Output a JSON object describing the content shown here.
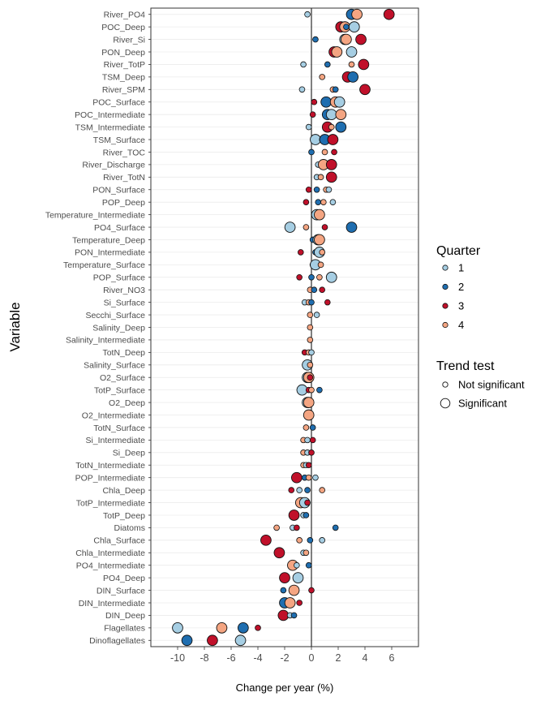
{
  "chart_data": {
    "type": "scatter",
    "xlabel": "Change per year (%)",
    "ylabel": "Variable",
    "xlim": [
      -12,
      8
    ],
    "xticks": [
      -10,
      -8,
      -6,
      -4,
      -2,
      0,
      2,
      4,
      6
    ],
    "xtick_labels": [
      "-10",
      "-8",
      "-6",
      "-4",
      "-2",
      "0",
      "2",
      "4",
      "6"
    ],
    "grid": true,
    "legend_position": "right",
    "colors": {
      "1": "#a6cee3",
      "2": "#1f6eb0",
      "3": "#c0102a",
      "4": "#f4a582"
    },
    "legend": {
      "quarter_title": "Quarter",
      "quarters": [
        {
          "label": "1",
          "color": "#a6cee3"
        },
        {
          "label": "2",
          "color": "#1f6eb0"
        },
        {
          "label": "3",
          "color": "#c0102a"
        },
        {
          "label": "4",
          "color": "#f4a582"
        }
      ],
      "trend_title": "Trend test",
      "trend_items": [
        {
          "label": "Not significant",
          "significant": false
        },
        {
          "label": "Significant",
          "significant": true
        }
      ]
    },
    "categories": [
      "River_PO4",
      "POC_Deep",
      "River_Si",
      "PON_Deep",
      "River_TotP",
      "TSM_Deep",
      "River_SPM",
      "POC_Surface",
      "POC_Intermediate",
      "TSM_Intermediate",
      "TSM_Surface",
      "River_TOC",
      "River_Discharge",
      "River_TotN",
      "PON_Surface",
      "POP_Deep",
      "Temperature_Intermediate",
      "PO4_Surface",
      "Temperature_Deep",
      "PON_Intermediate",
      "Temperature_Surface",
      "POP_Surface",
      "River_NO3",
      "Si_Surface",
      "Secchi_Surface",
      "Salinity_Deep",
      "Salinity_Intermediate",
      "TotN_Deep",
      "Salinity_Surface",
      "O2_Surface",
      "TotP_Surface",
      "O2_Deep",
      "O2_Intermediate",
      "TotN_Surface",
      "Si_Intermediate",
      "Si_Deep",
      "TotN_Intermediate",
      "POP_Intermediate",
      "Chla_Deep",
      "TotP_Intermediate",
      "TotP_Deep",
      "Diatoms",
      "Chla_Surface",
      "Chla_Intermediate",
      "PO4_Intermediate",
      "PO4_Deep",
      "DIN_Surface",
      "DIN_Intermediate",
      "DIN_Deep",
      "Flagellates",
      "Dinoflagellates"
    ],
    "points": [
      [
        "River_PO4",
        1,
        -0.3,
        0
      ],
      [
        "River_PO4",
        2,
        3.0,
        1
      ],
      [
        "River_PO4",
        4,
        3.4,
        1
      ],
      [
        "River_PO4",
        3,
        5.8,
        1
      ],
      [
        "POC_Deep",
        3,
        2.2,
        1
      ],
      [
        "POC_Deep",
        4,
        2.5,
        1
      ],
      [
        "POC_Deep",
        2,
        2.6,
        0
      ],
      [
        "POC_Deep",
        1,
        3.2,
        1
      ],
      [
        "River_Si",
        2,
        0.3,
        0
      ],
      [
        "River_Si",
        1,
        2.5,
        1
      ],
      [
        "River_Si",
        4,
        2.6,
        1
      ],
      [
        "River_Si",
        3,
        3.7,
        1
      ],
      [
        "PON_Deep",
        3,
        1.7,
        1
      ],
      [
        "PON_Deep",
        4,
        1.9,
        1
      ],
      [
        "PON_Deep",
        1,
        3.0,
        1
      ],
      [
        "River_TotP",
        1,
        -0.6,
        0
      ],
      [
        "River_TotP",
        2,
        1.2,
        0
      ],
      [
        "River_TotP",
        4,
        3.0,
        0
      ],
      [
        "River_TotP",
        3,
        3.9,
        1
      ],
      [
        "TSM_Deep",
        4,
        0.8,
        0
      ],
      [
        "TSM_Deep",
        3,
        2.7,
        1
      ],
      [
        "TSM_Deep",
        2,
        3.1,
        1
      ],
      [
        "River_SPM",
        1,
        -0.7,
        0
      ],
      [
        "River_SPM",
        4,
        1.6,
        0
      ],
      [
        "River_SPM",
        2,
        1.8,
        0
      ],
      [
        "River_SPM",
        3,
        4.0,
        1
      ],
      [
        "POC_Surface",
        3,
        0.2,
        0
      ],
      [
        "POC_Surface",
        2,
        1.1,
        1
      ],
      [
        "POC_Surface",
        4,
        1.8,
        1
      ],
      [
        "POC_Surface",
        1,
        2.1,
        1
      ],
      [
        "POC_Intermediate",
        3,
        0.1,
        0
      ],
      [
        "POC_Intermediate",
        2,
        1.2,
        1
      ],
      [
        "POC_Intermediate",
        1,
        1.5,
        1
      ],
      [
        "POC_Intermediate",
        4,
        2.2,
        1
      ],
      [
        "TSM_Intermediate",
        1,
        -0.2,
        0
      ],
      [
        "TSM_Intermediate",
        3,
        1.2,
        1
      ],
      [
        "TSM_Intermediate",
        4,
        1.5,
        0
      ],
      [
        "TSM_Intermediate",
        2,
        2.2,
        1
      ],
      [
        "TSM_Surface",
        1,
        0.3,
        1
      ],
      [
        "TSM_Surface",
        4,
        0.8,
        0
      ],
      [
        "TSM_Surface",
        2,
        1.0,
        1
      ],
      [
        "TSM_Surface",
        3,
        1.6,
        1
      ],
      [
        "River_TOC",
        2,
        0.0,
        0
      ],
      [
        "River_TOC",
        4,
        1.0,
        0
      ],
      [
        "River_TOC",
        3,
        1.7,
        0
      ],
      [
        "River_Discharge",
        1,
        0.5,
        0
      ],
      [
        "River_Discharge",
        4,
        0.9,
        1
      ],
      [
        "River_Discharge",
        3,
        1.5,
        1
      ],
      [
        "River_TotN",
        1,
        0.4,
        0
      ],
      [
        "River_TotN",
        4,
        0.7,
        0
      ],
      [
        "River_TotN",
        3,
        1.5,
        1
      ],
      [
        "PON_Surface",
        3,
        -0.2,
        0
      ],
      [
        "PON_Surface",
        2,
        0.4,
        0
      ],
      [
        "PON_Surface",
        4,
        1.1,
        0
      ],
      [
        "PON_Surface",
        1,
        1.3,
        0
      ],
      [
        "POP_Deep",
        3,
        -0.4,
        0
      ],
      [
        "POP_Deep",
        2,
        0.5,
        0
      ],
      [
        "POP_Deep",
        4,
        0.9,
        0
      ],
      [
        "POP_Deep",
        1,
        1.6,
        0
      ],
      [
        "Temperature_Intermediate",
        1,
        0.4,
        1
      ],
      [
        "Temperature_Intermediate",
        4,
        0.6,
        1
      ],
      [
        "PO4_Surface",
        1,
        -1.6,
        1
      ],
      [
        "PO4_Surface",
        4,
        -0.4,
        0
      ],
      [
        "PO4_Surface",
        3,
        1.0,
        0
      ],
      [
        "PO4_Surface",
        2,
        3.0,
        1
      ],
      [
        "Temperature_Deep",
        2,
        0.1,
        0
      ],
      [
        "Temperature_Deep",
        1,
        0.5,
        1
      ],
      [
        "Temperature_Deep",
        4,
        0.6,
        1
      ],
      [
        "PON_Intermediate",
        3,
        -0.8,
        0
      ],
      [
        "PON_Intermediate",
        2,
        0.3,
        0
      ],
      [
        "PON_Intermediate",
        1,
        0.6,
        1
      ],
      [
        "PON_Intermediate",
        4,
        0.8,
        0
      ],
      [
        "Temperature_Surface",
        3,
        0.1,
        0
      ],
      [
        "Temperature_Surface",
        1,
        0.3,
        1
      ],
      [
        "Temperature_Surface",
        4,
        0.7,
        0
      ],
      [
        "POP_Surface",
        3,
        -0.9,
        0
      ],
      [
        "POP_Surface",
        2,
        0.0,
        0
      ],
      [
        "POP_Surface",
        4,
        0.6,
        0
      ],
      [
        "POP_Surface",
        1,
        1.5,
        1
      ],
      [
        "River_NO3",
        4,
        -0.1,
        0
      ],
      [
        "River_NO3",
        2,
        0.2,
        0
      ],
      [
        "River_NO3",
        3,
        0.8,
        0
      ],
      [
        "Si_Surface",
        1,
        -0.5,
        0
      ],
      [
        "Si_Surface",
        4,
        -0.2,
        0
      ],
      [
        "Si_Surface",
        2,
        0.0,
        0
      ],
      [
        "Si_Surface",
        3,
        1.2,
        0
      ],
      [
        "Secchi_Surface",
        4,
        -0.1,
        0
      ],
      [
        "Secchi_Surface",
        1,
        0.4,
        0
      ],
      [
        "Salinity_Deep",
        4,
        -0.1,
        0
      ],
      [
        "Salinity_Intermediate",
        4,
        -0.1,
        0
      ],
      [
        "TotN_Deep",
        3,
        -0.5,
        0
      ],
      [
        "TotN_Deep",
        4,
        -0.2,
        0
      ],
      [
        "TotN_Deep",
        1,
        0.0,
        0
      ],
      [
        "Salinity_Surface",
        1,
        -0.3,
        1
      ],
      [
        "Salinity_Surface",
        4,
        -0.1,
        0
      ],
      [
        "O2_Surface",
        1,
        -0.3,
        1
      ],
      [
        "O2_Surface",
        2,
        -0.2,
        0
      ],
      [
        "O2_Surface",
        4,
        -0.2,
        1
      ],
      [
        "O2_Surface",
        3,
        -0.1,
        0
      ],
      [
        "TotP_Surface",
        1,
        -0.7,
        1
      ],
      [
        "TotP_Surface",
        3,
        -0.2,
        0
      ],
      [
        "TotP_Surface",
        4,
        0.0,
        0
      ],
      [
        "TotP_Surface",
        2,
        0.6,
        0
      ],
      [
        "O2_Deep",
        1,
        -0.3,
        1
      ],
      [
        "O2_Deep",
        4,
        -0.2,
        1
      ],
      [
        "O2_Intermediate",
        4,
        -0.2,
        1
      ],
      [
        "TotN_Surface",
        4,
        -0.4,
        0
      ],
      [
        "TotN_Surface",
        2,
        0.1,
        0
      ],
      [
        "Si_Intermediate",
        4,
        -0.6,
        0
      ],
      [
        "Si_Intermediate",
        1,
        -0.3,
        0
      ],
      [
        "Si_Intermediate",
        3,
        0.1,
        0
      ],
      [
        "Si_Deep",
        4,
        -0.6,
        0
      ],
      [
        "Si_Deep",
        1,
        -0.3,
        0
      ],
      [
        "Si_Deep",
        3,
        0.0,
        0
      ],
      [
        "TotN_Intermediate",
        4,
        -0.6,
        0
      ],
      [
        "TotN_Intermediate",
        1,
        -0.4,
        0
      ],
      [
        "TotN_Intermediate",
        3,
        -0.2,
        0
      ],
      [
        "POP_Intermediate",
        3,
        -1.1,
        1
      ],
      [
        "POP_Intermediate",
        2,
        -0.5,
        0
      ],
      [
        "POP_Intermediate",
        4,
        -0.2,
        0
      ],
      [
        "POP_Intermediate",
        1,
        0.3,
        0
      ],
      [
        "Chla_Deep",
        3,
        -1.5,
        0
      ],
      [
        "Chla_Deep",
        1,
        -0.9,
        0
      ],
      [
        "Chla_Deep",
        2,
        -0.3,
        0
      ],
      [
        "Chla_Deep",
        4,
        0.8,
        0
      ],
      [
        "TotP_Intermediate",
        4,
        -0.8,
        1
      ],
      [
        "TotP_Intermediate",
        1,
        -0.5,
        1
      ],
      [
        "TotP_Intermediate",
        3,
        -0.3,
        0
      ],
      [
        "TotP_Deep",
        3,
        -1.3,
        1
      ],
      [
        "TotP_Deep",
        1,
        -0.6,
        0
      ],
      [
        "TotP_Deep",
        2,
        -0.4,
        0
      ],
      [
        "Diatoms",
        4,
        -2.6,
        0
      ],
      [
        "Diatoms",
        1,
        -1.4,
        0
      ],
      [
        "Diatoms",
        3,
        -1.1,
        0
      ],
      [
        "Diatoms",
        2,
        1.8,
        0
      ],
      [
        "Chla_Surface",
        3,
        -3.4,
        1
      ],
      [
        "Chla_Surface",
        4,
        -0.9,
        0
      ],
      [
        "Chla_Surface",
        2,
        -0.1,
        0
      ],
      [
        "Chla_Surface",
        1,
        0.8,
        0
      ],
      [
        "Chla_Intermediate",
        3,
        -2.4,
        1
      ],
      [
        "Chla_Intermediate",
        1,
        -0.6,
        0
      ],
      [
        "Chla_Intermediate",
        4,
        -0.4,
        0
      ],
      [
        "PO4_Intermediate",
        4,
        -1.4,
        1
      ],
      [
        "PO4_Intermediate",
        1,
        -1.1,
        0
      ],
      [
        "PO4_Intermediate",
        2,
        -0.2,
        0
      ],
      [
        "PO4_Deep",
        3,
        -2.0,
        1
      ],
      [
        "PO4_Deep",
        1,
        -1.0,
        1
      ],
      [
        "DIN_Surface",
        2,
        -2.1,
        0
      ],
      [
        "DIN_Surface",
        4,
        -1.3,
        1
      ],
      [
        "DIN_Surface",
        3,
        0.0,
        0
      ],
      [
        "DIN_Intermediate",
        2,
        -2.0,
        1
      ],
      [
        "DIN_Intermediate",
        4,
        -1.6,
        1
      ],
      [
        "DIN_Intermediate",
        3,
        -0.9,
        0
      ],
      [
        "DIN_Deep",
        3,
        -2.1,
        1
      ],
      [
        "DIN_Deep",
        1,
        -1.6,
        0
      ],
      [
        "DIN_Deep",
        2,
        -1.3,
        0
      ],
      [
        "Flagellates",
        1,
        -10.0,
        1
      ],
      [
        "Flagellates",
        4,
        -6.7,
        1
      ],
      [
        "Flagellates",
        2,
        -5.1,
        1
      ],
      [
        "Flagellates",
        3,
        -4.0,
        0
      ],
      [
        "Dinoflagellates",
        2,
        -9.3,
        1
      ],
      [
        "Dinoflagellates",
        3,
        -7.4,
        1
      ],
      [
        "Dinoflagellates",
        1,
        -5.3,
        1
      ]
    ]
  }
}
